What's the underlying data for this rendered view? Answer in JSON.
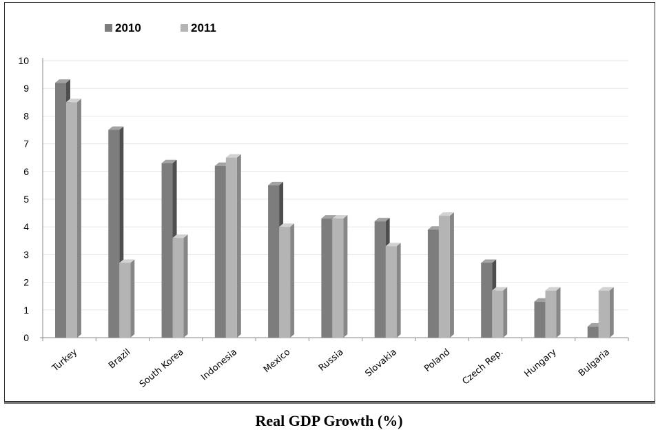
{
  "caption": "Real GDP Growth (%)",
  "chart_data": {
    "type": "bar",
    "title": "Real GDP Growth (%)",
    "categories": [
      "Turkey",
      "Brazil",
      "South Korea",
      "Indonesia",
      "Mexico",
      "Russia",
      "Slovakia",
      "Poland",
      "Czech Rep.",
      "Hungary",
      "Bulgaria"
    ],
    "series": [
      {
        "name": "2010",
        "values": [
          9.2,
          7.5,
          6.3,
          6.2,
          5.5,
          4.3,
          4.2,
          3.9,
          2.7,
          1.3,
          0.4
        ]
      },
      {
        "name": "2011",
        "values": [
          8.5,
          2.7,
          3.6,
          6.5,
          4.0,
          4.3,
          3.3,
          4.4,
          1.7,
          1.7,
          1.7
        ]
      }
    ],
    "ylim": [
      0,
      10
    ],
    "yticks": [
      "0",
      "1",
      "2",
      "3",
      "4",
      "5",
      "6",
      "7",
      "8",
      "9",
      "10"
    ],
    "grid": true,
    "legend_position": "top-left",
    "colors": {
      "2010_front": "#7d7d7d",
      "2010_side": "#4e4e4e",
      "2010_top": "#a2a2a2",
      "2011_front": "#b4b4b4",
      "2011_side": "#878787",
      "2011_top": "#d2d2d2"
    }
  }
}
